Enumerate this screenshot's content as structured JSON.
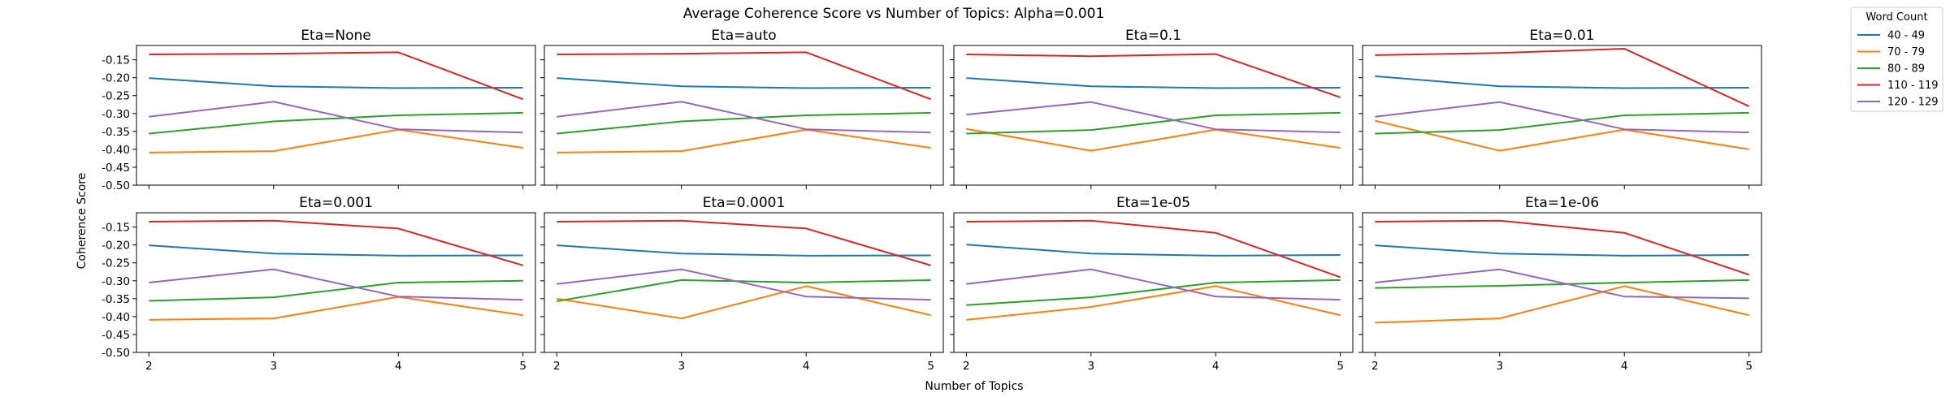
{
  "chart_data": {
    "type": "line",
    "title": "Average Coherence Score vs Number of Topics: Alpha=0.001",
    "xlabel": "Number of Topics",
    "ylabel": "Coherence Score",
    "x": [
      2,
      3,
      4,
      5
    ],
    "xlim": [
      1.9,
      5.1
    ],
    "ylim": [
      -0.5,
      -0.11
    ],
    "yticks": [
      -0.15,
      -0.2,
      -0.25,
      -0.3,
      -0.35,
      -0.4,
      -0.45,
      -0.5
    ],
    "ytick_labels": [
      "-0.15",
      "-0.20",
      "-0.25",
      "-0.30",
      "-0.35",
      "-0.40",
      "-0.45",
      "-0.50"
    ],
    "xtick_labels": [
      "2",
      "3",
      "4",
      "5"
    ],
    "grid": false,
    "legend": {
      "title": "Word Count",
      "placement": "top-right outside",
      "entries": [
        "40 - 49",
        "70 - 79",
        "80 - 89",
        "110 - 119",
        "120 - 129"
      ]
    },
    "colors": {
      "40 - 49": "#1f77b4",
      "70 - 79": "#ff7f0e",
      "80 - 89": "#2ca02c",
      "110 - 119": "#d62728",
      "120 - 129": "#9467bd"
    },
    "panels": [
      {
        "title": "Eta=None",
        "series": [
          {
            "name": "40 - 49",
            "values": [
              -0.201,
              -0.224,
              -0.229,
              -0.228
            ]
          },
          {
            "name": "70 - 79",
            "values": [
              -0.409,
              -0.405,
              -0.345,
              -0.396
            ]
          },
          {
            "name": "80 - 89",
            "values": [
              -0.356,
              -0.322,
              -0.305,
              -0.298
            ]
          },
          {
            "name": "110 - 119",
            "values": [
              -0.135,
              -0.133,
              -0.129,
              -0.26
            ]
          },
          {
            "name": "120 - 129",
            "values": [
              -0.309,
              -0.267,
              -0.344,
              -0.353
            ]
          }
        ]
      },
      {
        "title": "Eta=auto",
        "series": [
          {
            "name": "40 - 49",
            "values": [
              -0.201,
              -0.224,
              -0.229,
              -0.228
            ]
          },
          {
            "name": "70 - 79",
            "values": [
              -0.409,
              -0.405,
              -0.345,
              -0.396
            ]
          },
          {
            "name": "80 - 89",
            "values": [
              -0.356,
              -0.322,
              -0.305,
              -0.298
            ]
          },
          {
            "name": "110 - 119",
            "values": [
              -0.135,
              -0.133,
              -0.129,
              -0.26
            ]
          },
          {
            "name": "120 - 129",
            "values": [
              -0.309,
              -0.267,
              -0.344,
              -0.353
            ]
          }
        ]
      },
      {
        "title": "Eta=0.1",
        "series": [
          {
            "name": "40 - 49",
            "values": [
              -0.201,
              -0.224,
              -0.229,
              -0.228
            ]
          },
          {
            "name": "70 - 79",
            "values": [
              -0.343,
              -0.404,
              -0.345,
              -0.396
            ]
          },
          {
            "name": "80 - 89",
            "values": [
              -0.356,
              -0.346,
              -0.305,
              -0.298
            ]
          },
          {
            "name": "110 - 119",
            "values": [
              -0.135,
              -0.14,
              -0.134,
              -0.255
            ]
          },
          {
            "name": "120 - 129",
            "values": [
              -0.303,
              -0.268,
              -0.344,
              -0.353
            ]
          }
        ]
      },
      {
        "title": "Eta=0.01",
        "series": [
          {
            "name": "40 - 49",
            "values": [
              -0.196,
              -0.224,
              -0.229,
              -0.228
            ]
          },
          {
            "name": "70 - 79",
            "values": [
              -0.32,
              -0.404,
              -0.345,
              -0.4
            ]
          },
          {
            "name": "80 - 89",
            "values": [
              -0.356,
              -0.346,
              -0.305,
              -0.298
            ]
          },
          {
            "name": "110 - 119",
            "values": [
              -0.137,
              -0.131,
              -0.119,
              -0.28
            ]
          },
          {
            "name": "120 - 129",
            "values": [
              -0.309,
              -0.268,
              -0.344,
              -0.353
            ]
          }
        ]
      },
      {
        "title": "Eta=0.001",
        "series": [
          {
            "name": "40 - 49",
            "values": [
              -0.201,
              -0.224,
              -0.23,
              -0.229
            ]
          },
          {
            "name": "70 - 79",
            "values": [
              -0.409,
              -0.405,
              -0.345,
              -0.396
            ]
          },
          {
            "name": "80 - 89",
            "values": [
              -0.356,
              -0.346,
              -0.305,
              -0.3
            ]
          },
          {
            "name": "110 - 119",
            "values": [
              -0.135,
              -0.132,
              -0.154,
              -0.257
            ]
          },
          {
            "name": "120 - 129",
            "values": [
              -0.305,
              -0.268,
              -0.344,
              -0.353
            ]
          }
        ]
      },
      {
        "title": "Eta=0.0001",
        "series": [
          {
            "name": "40 - 49",
            "values": [
              -0.201,
              -0.224,
              -0.23,
              -0.229
            ]
          },
          {
            "name": "70 - 79",
            "values": [
              -0.35,
              -0.405,
              -0.315,
              -0.396
            ]
          },
          {
            "name": "80 - 89",
            "values": [
              -0.357,
              -0.298,
              -0.305,
              -0.298
            ]
          },
          {
            "name": "110 - 119",
            "values": [
              -0.135,
              -0.132,
              -0.154,
              -0.257
            ]
          },
          {
            "name": "120 - 129",
            "values": [
              -0.309,
              -0.268,
              -0.344,
              -0.353
            ]
          }
        ]
      },
      {
        "title": "Eta=1e-05",
        "series": [
          {
            "name": "40 - 49",
            "values": [
              -0.199,
              -0.224,
              -0.23,
              -0.228
            ]
          },
          {
            "name": "70 - 79",
            "values": [
              -0.409,
              -0.373,
              -0.315,
              -0.396
            ]
          },
          {
            "name": "80 - 89",
            "values": [
              -0.368,
              -0.346,
              -0.305,
              -0.298
            ]
          },
          {
            "name": "110 - 119",
            "values": [
              -0.135,
              -0.132,
              -0.166,
              -0.29
            ]
          },
          {
            "name": "120 - 129",
            "values": [
              -0.309,
              -0.268,
              -0.344,
              -0.353
            ]
          }
        ]
      },
      {
        "title": "Eta=1e-06",
        "series": [
          {
            "name": "40 - 49",
            "values": [
              -0.201,
              -0.224,
              -0.23,
              -0.228
            ]
          },
          {
            "name": "70 - 79",
            "values": [
              -0.417,
              -0.405,
              -0.315,
              -0.396
            ]
          },
          {
            "name": "80 - 89",
            "values": [
              -0.32,
              -0.314,
              -0.305,
              -0.298
            ]
          },
          {
            "name": "110 - 119",
            "values": [
              -0.135,
              -0.132,
              -0.166,
              -0.283
            ]
          },
          {
            "name": "120 - 129",
            "values": [
              -0.305,
              -0.268,
              -0.344,
              -0.349
            ]
          }
        ]
      }
    ]
  }
}
